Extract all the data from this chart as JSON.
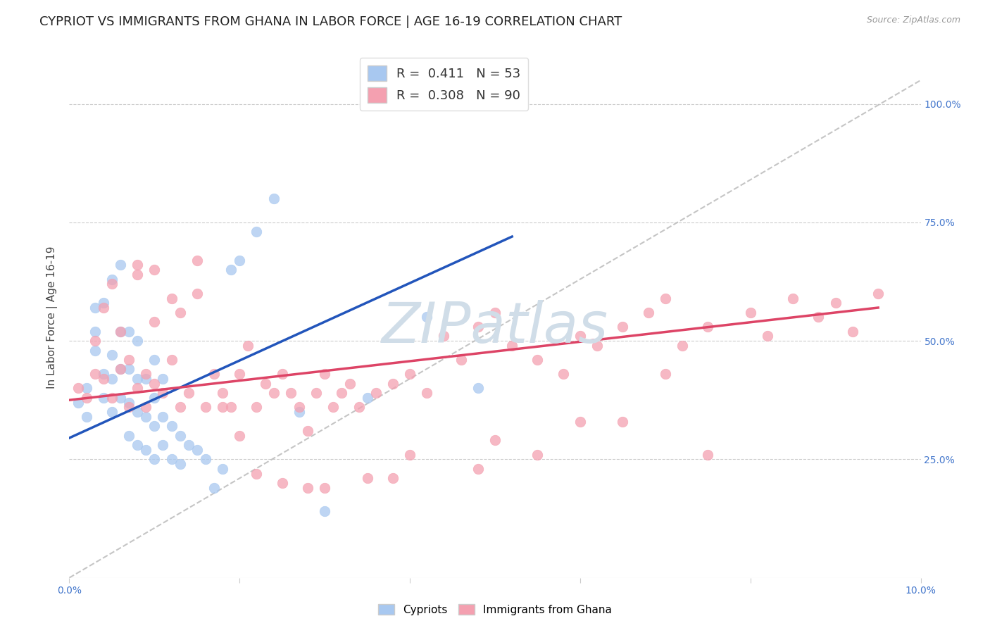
{
  "title": "CYPRIOT VS IMMIGRANTS FROM GHANA IN LABOR FORCE | AGE 16-19 CORRELATION CHART",
  "source": "Source: ZipAtlas.com",
  "ylabel": "In Labor Force | Age 16-19",
  "xlim": [
    0.0,
    0.1
  ],
  "ylim": [
    0.0,
    1.1
  ],
  "xticks": [
    0.0,
    0.02,
    0.04,
    0.06,
    0.08,
    0.1
  ],
  "xtick_labels": [
    "0.0%",
    "",
    "",
    "",
    "",
    "10.0%"
  ],
  "ytick_labels_right": [
    "25.0%",
    "50.0%",
    "75.0%",
    "100.0%"
  ],
  "yticks_right": [
    0.25,
    0.5,
    0.75,
    1.0
  ],
  "cypriot_R": 0.411,
  "cypriot_N": 53,
  "ghana_R": 0.308,
  "ghana_N": 90,
  "cypriot_color": "#a8c8f0",
  "ghana_color": "#f4a0b0",
  "cypriot_line_color": "#2255bb",
  "ghana_line_color": "#dd4466",
  "ref_line_color": "#bbbbbb",
  "watermark": "ZIPatlas",
  "watermark_color": "#d0dde8",
  "background_color": "#ffffff",
  "title_fontsize": 13,
  "legend_fontsize": 13,
  "axis_label_fontsize": 11,
  "tick_fontsize": 10,
  "cypriot_line_x0": 0.0,
  "cypriot_line_y0": 0.295,
  "cypriot_line_x1": 0.052,
  "cypriot_line_y1": 0.72,
  "ghana_line_x0": 0.0,
  "ghana_line_y0": 0.375,
  "ghana_line_x1": 0.095,
  "ghana_line_y1": 0.57,
  "cypriot_x": [
    0.001,
    0.002,
    0.002,
    0.003,
    0.003,
    0.003,
    0.004,
    0.004,
    0.004,
    0.005,
    0.005,
    0.005,
    0.005,
    0.006,
    0.006,
    0.006,
    0.006,
    0.007,
    0.007,
    0.007,
    0.007,
    0.008,
    0.008,
    0.008,
    0.008,
    0.009,
    0.009,
    0.009,
    0.01,
    0.01,
    0.01,
    0.01,
    0.011,
    0.011,
    0.011,
    0.012,
    0.012,
    0.013,
    0.013,
    0.014,
    0.015,
    0.016,
    0.017,
    0.018,
    0.019,
    0.02,
    0.022,
    0.024,
    0.027,
    0.03,
    0.035,
    0.042,
    0.048
  ],
  "cypriot_y": [
    0.37,
    0.34,
    0.4,
    0.48,
    0.52,
    0.57,
    0.38,
    0.43,
    0.58,
    0.35,
    0.42,
    0.47,
    0.63,
    0.38,
    0.44,
    0.52,
    0.66,
    0.3,
    0.37,
    0.44,
    0.52,
    0.28,
    0.35,
    0.42,
    0.5,
    0.27,
    0.34,
    0.42,
    0.25,
    0.32,
    0.38,
    0.46,
    0.28,
    0.34,
    0.42,
    0.25,
    0.32,
    0.24,
    0.3,
    0.28,
    0.27,
    0.25,
    0.19,
    0.23,
    0.65,
    0.67,
    0.73,
    0.8,
    0.35,
    0.14,
    0.38,
    0.55,
    0.4
  ],
  "ghana_x": [
    0.001,
    0.002,
    0.003,
    0.003,
    0.004,
    0.004,
    0.005,
    0.005,
    0.006,
    0.006,
    0.007,
    0.007,
    0.008,
    0.008,
    0.009,
    0.009,
    0.01,
    0.01,
    0.011,
    0.012,
    0.013,
    0.013,
    0.014,
    0.015,
    0.016,
    0.017,
    0.018,
    0.019,
    0.02,
    0.021,
    0.022,
    0.023,
    0.024,
    0.025,
    0.026,
    0.027,
    0.028,
    0.029,
    0.03,
    0.031,
    0.032,
    0.033,
    0.034,
    0.036,
    0.038,
    0.04,
    0.042,
    0.044,
    0.046,
    0.048,
    0.05,
    0.052,
    0.055,
    0.058,
    0.06,
    0.062,
    0.065,
    0.068,
    0.07,
    0.072,
    0.075,
    0.08,
    0.082,
    0.085,
    0.088,
    0.09,
    0.092,
    0.095,
    0.01,
    0.015,
    0.02,
    0.025,
    0.03,
    0.035,
    0.04,
    0.05,
    0.06,
    0.07,
    0.008,
    0.012,
    0.018,
    0.022,
    0.028,
    0.038,
    0.048,
    0.055,
    0.065,
    0.075
  ],
  "ghana_y": [
    0.4,
    0.38,
    0.43,
    0.5,
    0.42,
    0.57,
    0.38,
    0.62,
    0.44,
    0.52,
    0.36,
    0.46,
    0.4,
    0.64,
    0.36,
    0.43,
    0.41,
    0.54,
    0.39,
    0.46,
    0.36,
    0.56,
    0.39,
    0.67,
    0.36,
    0.43,
    0.39,
    0.36,
    0.43,
    0.49,
    0.36,
    0.41,
    0.39,
    0.43,
    0.39,
    0.36,
    0.31,
    0.39,
    0.43,
    0.36,
    0.39,
    0.41,
    0.36,
    0.39,
    0.41,
    0.43,
    0.39,
    0.51,
    0.46,
    0.53,
    0.56,
    0.49,
    0.46,
    0.43,
    0.51,
    0.49,
    0.53,
    0.56,
    0.59,
    0.49,
    0.53,
    0.56,
    0.51,
    0.59,
    0.55,
    0.58,
    0.52,
    0.6,
    0.65,
    0.6,
    0.3,
    0.2,
    0.19,
    0.21,
    0.26,
    0.29,
    0.33,
    0.43,
    0.66,
    0.59,
    0.36,
    0.22,
    0.19,
    0.21,
    0.23,
    0.26,
    0.33,
    0.26
  ]
}
